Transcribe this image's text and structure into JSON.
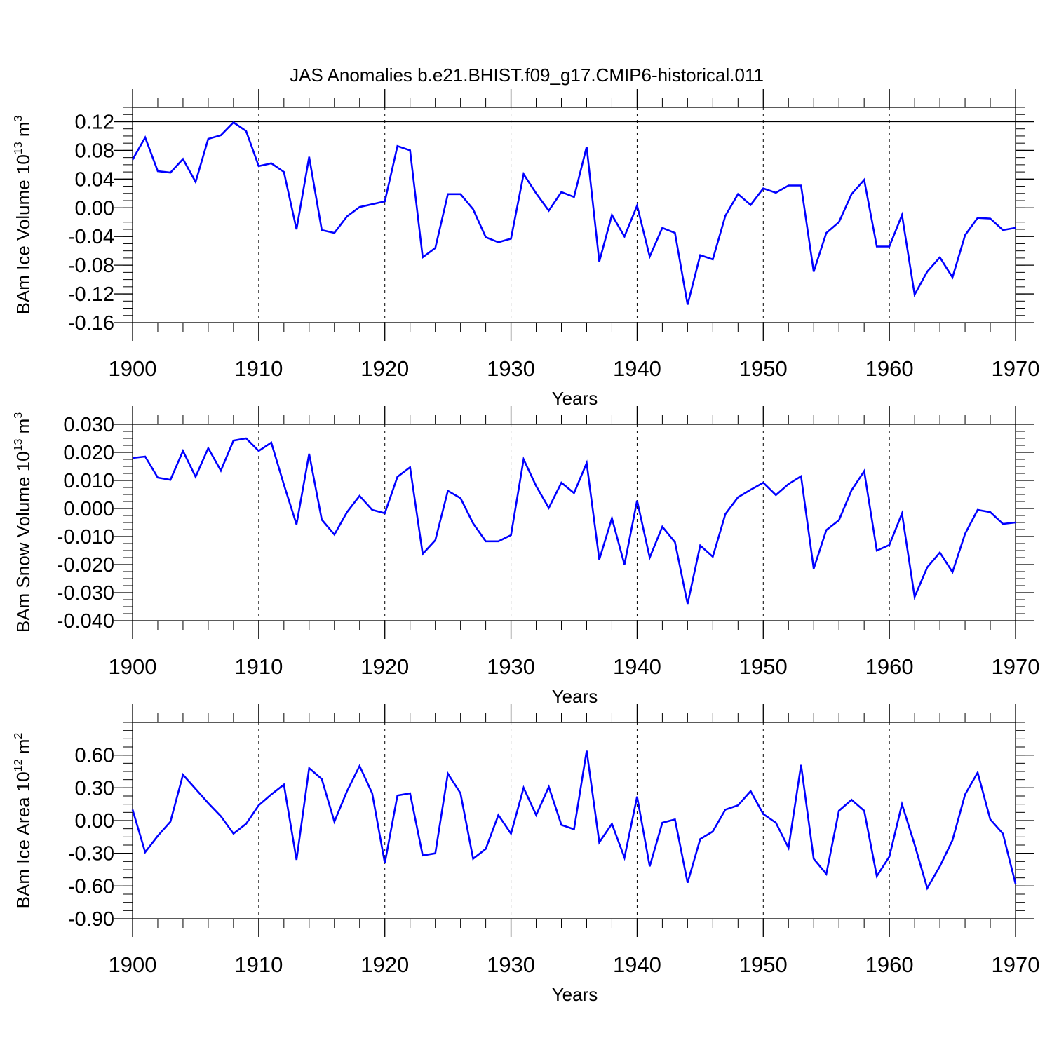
{
  "title": "JAS Anomalies b.e21.BHIST.f09_g17.CMIP6-historical.011",
  "chart_data": [
    {
      "type": "line",
      "ylabel": {
        "main": "BAm Ice Volume 10",
        "exp": "13",
        "unit": " m",
        "unit_exp": "3"
      },
      "xlabel": "Years",
      "xlim": [
        1900,
        1970
      ],
      "ylim": [
        -0.16,
        0.14
      ],
      "yticks": [
        0.12,
        0.08,
        0.04,
        0.0,
        -0.04,
        -0.08,
        -0.12,
        -0.16
      ],
      "ytick_labels": [
        "0.12",
        "0.08",
        "0.04",
        "0.00",
        "-0.04",
        "-0.08",
        "-0.12",
        "-0.16"
      ],
      "xticks": [
        1900,
        1910,
        1920,
        1930,
        1940,
        1950,
        1960,
        1970
      ],
      "xtick_labels": [
        "1900",
        "1910",
        "1920",
        "1930",
        "1940",
        "1950",
        "1960",
        "1970"
      ],
      "ref_line": 0.12,
      "grid": "dashed vertical at decades",
      "color": "#0000ff",
      "x": [
        1900,
        1901,
        1902,
        1903,
        1904,
        1905,
        1906,
        1907,
        1908,
        1909,
        1910,
        1911,
        1912,
        1913,
        1914,
        1915,
        1916,
        1917,
        1918,
        1919,
        1920,
        1921,
        1922,
        1923,
        1924,
        1925,
        1926,
        1927,
        1928,
        1929,
        1930,
        1931,
        1932,
        1933,
        1934,
        1935,
        1936,
        1937,
        1938,
        1939,
        1940,
        1941,
        1942,
        1943,
        1944,
        1945,
        1946,
        1947,
        1948,
        1949,
        1950,
        1951,
        1952,
        1953,
        1954,
        1955,
        1956,
        1957,
        1958,
        1959,
        1960,
        1961,
        1962,
        1963,
        1964,
        1965,
        1966,
        1967,
        1968,
        1969,
        1970
      ],
      "y": [
        0.067,
        0.098,
        0.051,
        0.049,
        0.068,
        0.036,
        0.096,
        0.101,
        0.119,
        0.107,
        0.058,
        0.062,
        0.05,
        -0.03,
        0.071,
        -0.031,
        -0.035,
        -0.012,
        0.001,
        0.005,
        0.009,
        0.086,
        0.08,
        -0.069,
        -0.056,
        0.019,
        0.019,
        -0.002,
        -0.041,
        -0.048,
        -0.043,
        0.047,
        0.02,
        -0.004,
        0.022,
        0.015,
        0.085,
        -0.075,
        -0.01,
        -0.04,
        0.003,
        -0.068,
        -0.028,
        -0.035,
        -0.135,
        -0.066,
        -0.072,
        -0.011,
        0.019,
        0.004,
        0.027,
        0.021,
        0.031,
        0.031,
        -0.089,
        -0.035,
        -0.02,
        0.019,
        0.039,
        -0.054,
        -0.054,
        -0.01,
        -0.121,
        -0.089,
        -0.069,
        -0.097,
        -0.038,
        -0.014,
        -0.015,
        -0.031,
        -0.028
      ]
    },
    {
      "type": "line",
      "ylabel": {
        "main": "BAm Snow Volume 10",
        "exp": "13",
        "unit": " m",
        "unit_exp": "3"
      },
      "xlabel": "Years",
      "xlim": [
        1900,
        1970
      ],
      "ylim": [
        -0.04,
        0.03
      ],
      "yticks": [
        0.03,
        0.02,
        0.01,
        0.0,
        -0.01,
        -0.02,
        -0.03,
        -0.04
      ],
      "ytick_labels": [
        "0.030",
        "0.020",
        "0.010",
        "0.000",
        "-0.010",
        "-0.020",
        "-0.030",
        "-0.040"
      ],
      "xticks": [
        1900,
        1910,
        1920,
        1930,
        1940,
        1950,
        1960,
        1970
      ],
      "xtick_labels": [
        "1900",
        "1910",
        "1920",
        "1930",
        "1940",
        "1950",
        "1960",
        "1970"
      ],
      "ref_line": null,
      "grid": "dashed vertical at decades",
      "color": "#0000ff",
      "x": [
        1900,
        1901,
        1902,
        1903,
        1904,
        1905,
        1906,
        1907,
        1908,
        1909,
        1910,
        1911,
        1912,
        1913,
        1914,
        1915,
        1916,
        1917,
        1918,
        1919,
        1920,
        1921,
        1922,
        1923,
        1924,
        1925,
        1926,
        1927,
        1928,
        1929,
        1930,
        1931,
        1932,
        1933,
        1934,
        1935,
        1936,
        1937,
        1938,
        1939,
        1940,
        1941,
        1942,
        1943,
        1944,
        1945,
        1946,
        1947,
        1948,
        1949,
        1950,
        1951,
        1952,
        1953,
        1954,
        1955,
        1956,
        1957,
        1958,
        1959,
        1960,
        1961,
        1962,
        1963,
        1964,
        1965,
        1966,
        1967,
        1968,
        1969,
        1970
      ],
      "y": [
        0.018,
        0.0185,
        0.011,
        0.0102,
        0.0205,
        0.0113,
        0.0215,
        0.0135,
        0.0242,
        0.025,
        0.0205,
        0.0235,
        0.0085,
        -0.0057,
        0.0195,
        -0.004,
        -0.0093,
        -0.0013,
        0.0045,
        -0.0005,
        -0.0017,
        0.0113,
        0.0147,
        -0.0162,
        -0.0113,
        0.0063,
        0.0037,
        -0.0053,
        -0.0117,
        -0.0117,
        -0.0095,
        0.0175,
        0.008,
        0.0002,
        0.0092,
        0.0055,
        0.0162,
        -0.0182,
        -0.0035,
        -0.02,
        0.0028,
        -0.0175,
        -0.0065,
        -0.012,
        -0.034,
        -0.0132,
        -0.0172,
        -0.002,
        0.004,
        0.0067,
        0.0092,
        0.0048,
        0.0087,
        0.0115,
        -0.0215,
        -0.0077,
        -0.0042,
        0.0065,
        0.0133,
        -0.015,
        -0.013,
        -0.0018,
        -0.0315,
        -0.021,
        -0.0157,
        -0.0227,
        -0.009,
        -0.0005,
        -0.0013,
        -0.0055,
        -0.005
      ]
    },
    {
      "type": "line",
      "ylabel": {
        "main": "BAm Ice Area 10",
        "exp": "12",
        "unit": " m",
        "unit_exp": "2"
      },
      "xlabel": "Years",
      "xlim": [
        1900,
        1970
      ],
      "ylim": [
        -0.9,
        0.9
      ],
      "yticks": [
        0.6,
        0.3,
        0.0,
        -0.3,
        -0.6,
        -0.9
      ],
      "ytick_labels": [
        "0.60",
        "0.30",
        "0.00",
        "-0.30",
        "-0.60",
        "-0.90"
      ],
      "xticks": [
        1900,
        1910,
        1920,
        1930,
        1940,
        1950,
        1960,
        1970
      ],
      "xtick_labels": [
        "1900",
        "1910",
        "1920",
        "1930",
        "1940",
        "1950",
        "1960",
        "1970"
      ],
      "ref_line": null,
      "grid": "dashed vertical at decades",
      "color": "#0000ff",
      "x": [
        1900,
        1901,
        1902,
        1903,
        1904,
        1905,
        1906,
        1907,
        1908,
        1909,
        1910,
        1911,
        1912,
        1913,
        1914,
        1915,
        1916,
        1917,
        1918,
        1919,
        1920,
        1921,
        1922,
        1923,
        1924,
        1925,
        1926,
        1927,
        1928,
        1929,
        1930,
        1931,
        1932,
        1933,
        1934,
        1935,
        1936,
        1937,
        1938,
        1939,
        1940,
        1941,
        1942,
        1943,
        1944,
        1945,
        1946,
        1947,
        1948,
        1949,
        1950,
        1951,
        1952,
        1953,
        1954,
        1955,
        1956,
        1957,
        1958,
        1959,
        1960,
        1961,
        1962,
        1963,
        1964,
        1965,
        1966,
        1967,
        1968,
        1969,
        1970
      ],
      "y": [
        0.1,
        -0.29,
        -0.14,
        -0.01,
        0.42,
        0.29,
        0.16,
        0.04,
        -0.12,
        -0.03,
        0.14,
        0.24,
        0.33,
        -0.36,
        0.48,
        0.38,
        -0.01,
        0.27,
        0.5,
        0.25,
        -0.39,
        0.23,
        0.25,
        -0.32,
        -0.3,
        0.43,
        0.25,
        -0.35,
        -0.26,
        0.05,
        -0.12,
        0.3,
        0.05,
        0.31,
        -0.04,
        -0.08,
        0.64,
        -0.2,
        -0.03,
        -0.34,
        0.22,
        -0.42,
        -0.02,
        0.01,
        -0.57,
        -0.17,
        -0.1,
        0.1,
        0.14,
        0.27,
        0.06,
        -0.02,
        -0.25,
        0.51,
        -0.35,
        -0.49,
        0.09,
        0.19,
        0.09,
        -0.51,
        -0.33,
        0.15,
        -0.22,
        -0.62,
        -0.42,
        -0.18,
        0.24,
        0.44,
        0.01,
        -0.12,
        -0.58
      ]
    }
  ]
}
